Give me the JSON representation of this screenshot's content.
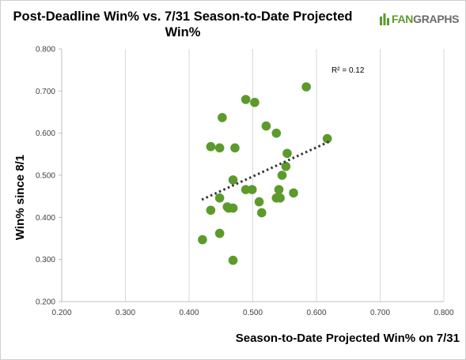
{
  "chart_data": {
    "type": "scatter",
    "title": "Post-Deadline Win% vs. 7/31 Season-to-Date Projected Win%",
    "xlabel": "Season-to-Date Projected Win% on 7/31",
    "ylabel": "Win% since 8/1",
    "xlim": [
      0.2,
      0.8
    ],
    "ylim": [
      0.2,
      0.8
    ],
    "x_ticks": [
      "0.200",
      "0.300",
      "0.400",
      "0.500",
      "0.600",
      "0.700",
      "0.800"
    ],
    "y_ticks": [
      "0.200",
      "0.300",
      "0.400",
      "0.500",
      "0.600",
      "0.700",
      "0.800"
    ],
    "grid": "vertical",
    "annotation": "R² = 0.12",
    "point_color": "#5c9a2c",
    "trendline": {
      "style": "dotted",
      "color": "#333333",
      "x": [
        0.42,
        0.62
      ],
      "y": [
        0.442,
        0.58
      ]
    },
    "points": [
      {
        "x": 0.584,
        "y": 0.71
      },
      {
        "x": 0.489,
        "y": 0.68
      },
      {
        "x": 0.503,
        "y": 0.673
      },
      {
        "x": 0.452,
        "y": 0.637
      },
      {
        "x": 0.521,
        "y": 0.617
      },
      {
        "x": 0.537,
        "y": 0.6
      },
      {
        "x": 0.617,
        "y": 0.587
      },
      {
        "x": 0.434,
        "y": 0.568
      },
      {
        "x": 0.448,
        "y": 0.565
      },
      {
        "x": 0.472,
        "y": 0.565
      },
      {
        "x": 0.554,
        "y": 0.552
      },
      {
        "x": 0.552,
        "y": 0.521
      },
      {
        "x": 0.546,
        "y": 0.5
      },
      {
        "x": 0.469,
        "y": 0.489
      },
      {
        "x": 0.489,
        "y": 0.466
      },
      {
        "x": 0.499,
        "y": 0.466
      },
      {
        "x": 0.541,
        "y": 0.466
      },
      {
        "x": 0.564,
        "y": 0.458
      },
      {
        "x": 0.448,
        "y": 0.446
      },
      {
        "x": 0.537,
        "y": 0.446
      },
      {
        "x": 0.543,
        "y": 0.446
      },
      {
        "x": 0.51,
        "y": 0.437
      },
      {
        "x": 0.46,
        "y": 0.425
      },
      {
        "x": 0.462,
        "y": 0.422
      },
      {
        "x": 0.469,
        "y": 0.422
      },
      {
        "x": 0.434,
        "y": 0.417
      },
      {
        "x": 0.514,
        "y": 0.411
      },
      {
        "x": 0.448,
        "y": 0.362
      },
      {
        "x": 0.421,
        "y": 0.347
      },
      {
        "x": 0.469,
        "y": 0.298
      }
    ]
  },
  "logo": {
    "part1": "FAN",
    "part2": "GRAPHS"
  }
}
